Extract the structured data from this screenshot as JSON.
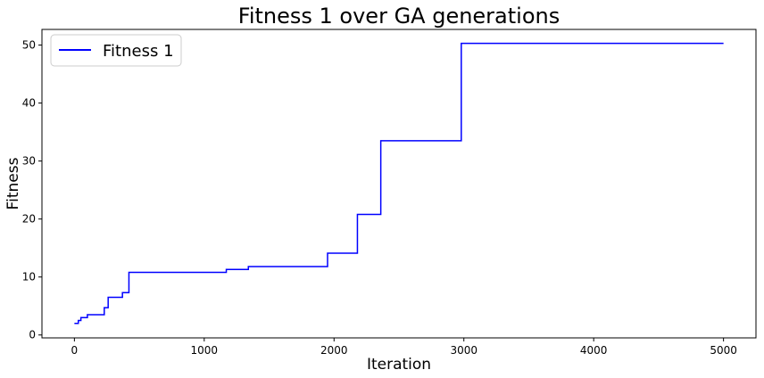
{
  "chart_data": {
    "type": "line",
    "title": "Fitness 1 over GA generations",
    "xlabel": "Iteration",
    "ylabel": "Fitness",
    "xlim": [
      -250,
      5250
    ],
    "ylim": [
      -0.5,
      52.7
    ],
    "xticks": [
      0,
      1000,
      2000,
      3000,
      4000,
      5000
    ],
    "yticks": [
      0,
      10,
      20,
      30,
      40,
      50
    ],
    "grid": false,
    "legend_position": "top-left",
    "step": true,
    "series": [
      {
        "name": "Fitness 1",
        "color": "#0000ff",
        "x": [
          0,
          30,
          50,
          100,
          230,
          260,
          370,
          420,
          1170,
          1340,
          1950,
          2180,
          2360,
          2980,
          5000
        ],
        "y": [
          2.0,
          2.5,
          3.0,
          3.5,
          4.7,
          6.5,
          7.3,
          10.8,
          11.3,
          11.8,
          14.1,
          20.8,
          33.5,
          50.3,
          50.3
        ]
      }
    ]
  }
}
